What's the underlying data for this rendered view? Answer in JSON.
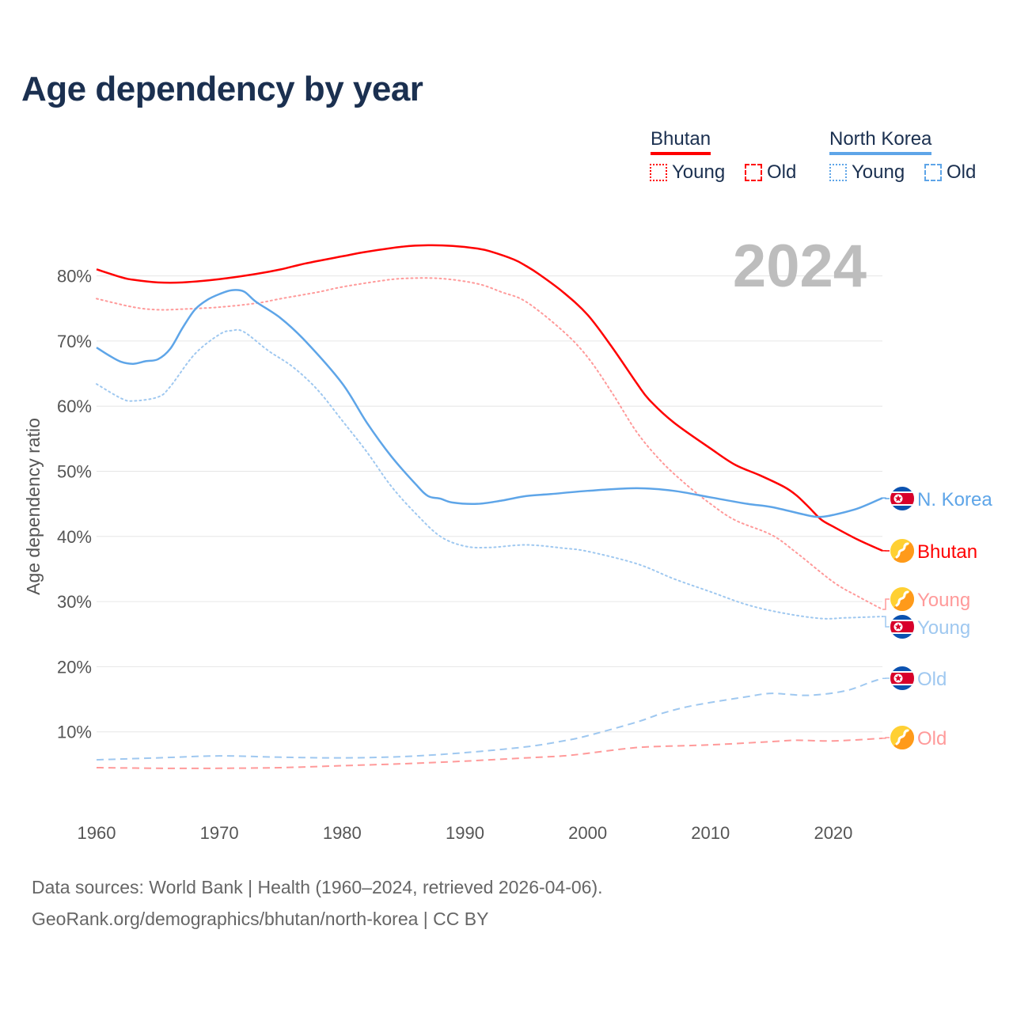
{
  "title": "Age dependency by year",
  "legend": {
    "countries": [
      {
        "name": "Bhutan",
        "color": "#ff0000",
        "items": [
          "Young",
          "Old"
        ]
      },
      {
        "name": "North Korea",
        "color": "#5ea5e8",
        "items": [
          "Young",
          "Old"
        ]
      }
    ]
  },
  "year_watermark": "2024",
  "footer": {
    "line1": "Data sources: World Bank | Health (1960–2024, retrieved 2026-04-06).",
    "line2": "GeoRank.org/demographics/bhutan/north-korea | CC BY"
  },
  "chart_data": {
    "type": "line",
    "title": "Age dependency by year",
    "xlabel": "",
    "ylabel": "Age dependency ratio",
    "xlim": [
      1960,
      2024
    ],
    "ylim": [
      0,
      85
    ],
    "x_ticks": [
      "1960",
      "1970",
      "1980",
      "1990",
      "2000",
      "2010",
      "2020"
    ],
    "y_ticks": [
      "10%",
      "20%",
      "30%",
      "40%",
      "50%",
      "60%",
      "70%",
      "80%"
    ],
    "grid": true,
    "legend_position": "top-right",
    "series": [
      {
        "name": "Bhutan",
        "end_label": "Bhutan",
        "country": "bhutan",
        "style": "solid",
        "color": "#ff0000",
        "points": [
          [
            1960,
            81
          ],
          [
            1962,
            79.8
          ],
          [
            1963,
            79.4
          ],
          [
            1965,
            79
          ],
          [
            1967,
            79
          ],
          [
            1970,
            79.5
          ],
          [
            1973,
            80.3
          ],
          [
            1975,
            81
          ],
          [
            1977,
            81.9
          ],
          [
            1980,
            83
          ],
          [
            1982,
            83.7
          ],
          [
            1985,
            84.5
          ],
          [
            1987,
            84.7
          ],
          [
            1989,
            84.6
          ],
          [
            1991,
            84.2
          ],
          [
            1992,
            83.8
          ],
          [
            1994,
            82.5
          ],
          [
            1995,
            81.5
          ],
          [
            1996,
            80.3
          ],
          [
            1998,
            77.5
          ],
          [
            2000,
            74
          ],
          [
            2002,
            69
          ],
          [
            2004,
            63.5
          ],
          [
            2005,
            61
          ],
          [
            2007,
            57.5
          ],
          [
            2010,
            53.5
          ],
          [
            2012,
            51
          ],
          [
            2014,
            49.4
          ],
          [
            2016,
            47.6
          ],
          [
            2017,
            46.3
          ],
          [
            2018,
            44.5
          ],
          [
            2019,
            42.6
          ],
          [
            2020,
            41.5
          ],
          [
            2022,
            39.5
          ],
          [
            2024,
            37.8
          ]
        ]
      },
      {
        "name": "Bhutan Young",
        "end_label": "Young",
        "country": "bhutan",
        "style": "dotted",
        "color": "#ff9a9a",
        "points": [
          [
            1960,
            76.5
          ],
          [
            1963,
            75.2
          ],
          [
            1965,
            74.8
          ],
          [
            1967,
            74.9
          ],
          [
            1970,
            75.2
          ],
          [
            1973,
            75.8
          ],
          [
            1975,
            76.5
          ],
          [
            1978,
            77.5
          ],
          [
            1980,
            78.3
          ],
          [
            1983,
            79.2
          ],
          [
            1985,
            79.6
          ],
          [
            1988,
            79.6
          ],
          [
            1991,
            78.8
          ],
          [
            1993,
            77.5
          ],
          [
            1995,
            76
          ],
          [
            1998,
            71.5
          ],
          [
            2000,
            67.5
          ],
          [
            2002,
            62
          ],
          [
            2004,
            56
          ],
          [
            2006,
            51.5
          ],
          [
            2008,
            48
          ],
          [
            2010,
            45
          ],
          [
            2012,
            42.5
          ],
          [
            2015,
            40.2
          ],
          [
            2017,
            37.5
          ],
          [
            2020,
            33
          ],
          [
            2022,
            30.8
          ],
          [
            2024,
            28.8
          ]
        ]
      },
      {
        "name": "Bhutan Old",
        "end_label": "Old",
        "country": "bhutan",
        "style": "dashed",
        "color": "#ff9a9a",
        "points": [
          [
            1960,
            4.5
          ],
          [
            1965,
            4.4
          ],
          [
            1970,
            4.4
          ],
          [
            1975,
            4.5
          ],
          [
            1980,
            4.8
          ],
          [
            1985,
            5.1
          ],
          [
            1990,
            5.5
          ],
          [
            1995,
            6
          ],
          [
            1998,
            6.3
          ],
          [
            2000,
            6.7
          ],
          [
            2003,
            7.4
          ],
          [
            2005,
            7.7
          ],
          [
            2010,
            8
          ],
          [
            2015,
            8.5
          ],
          [
            2017,
            8.7
          ],
          [
            2020,
            8.6
          ],
          [
            2024,
            9
          ]
        ]
      },
      {
        "name": "North Korea",
        "end_label": "N. Korea",
        "country": "north-korea",
        "style": "solid",
        "color": "#5ea5e8",
        "points": [
          [
            1960,
            69
          ],
          [
            1961,
            67.8
          ],
          [
            1962,
            66.8
          ],
          [
            1963,
            66.5
          ],
          [
            1964,
            66.9
          ],
          [
            1965,
            67.2
          ],
          [
            1966,
            68.8
          ],
          [
            1967,
            72
          ],
          [
            1968,
            74.8
          ],
          [
            1969,
            76.3
          ],
          [
            1970,
            77.2
          ],
          [
            1971,
            77.8
          ],
          [
            1972,
            77.6
          ],
          [
            1973,
            76
          ],
          [
            1975,
            73.5
          ],
          [
            1977,
            70
          ],
          [
            1980,
            63.5
          ],
          [
            1982,
            57.5
          ],
          [
            1984,
            52.3
          ],
          [
            1986,
            48
          ],
          [
            1987,
            46.2
          ],
          [
            1988,
            45.8
          ],
          [
            1989,
            45.2
          ],
          [
            1991,
            45
          ],
          [
            1993,
            45.5
          ],
          [
            1995,
            46.2
          ],
          [
            1997,
            46.5
          ],
          [
            2000,
            47
          ],
          [
            2004,
            47.4
          ],
          [
            2007,
            47
          ],
          [
            2010,
            46
          ],
          [
            2013,
            45
          ],
          [
            2015,
            44.5
          ],
          [
            2018,
            43.2
          ],
          [
            2019,
            43
          ],
          [
            2020,
            43.3
          ],
          [
            2022,
            44.3
          ],
          [
            2024,
            45.9
          ]
        ]
      },
      {
        "name": "North Korea Young",
        "end_label": "Young",
        "country": "north-korea",
        "style": "dotted",
        "color": "#9fc8f0",
        "points": [
          [
            1960,
            63.4
          ],
          [
            1962,
            61.2
          ],
          [
            1963,
            60.8
          ],
          [
            1965,
            61.4
          ],
          [
            1966,
            63
          ],
          [
            1968,
            68
          ],
          [
            1970,
            71
          ],
          [
            1971,
            71.6
          ],
          [
            1972,
            71.4
          ],
          [
            1974,
            68.5
          ],
          [
            1976,
            66
          ],
          [
            1978,
            62.5
          ],
          [
            1980,
            57.8
          ],
          [
            1982,
            53
          ],
          [
            1984,
            47.7
          ],
          [
            1986,
            43.5
          ],
          [
            1988,
            40
          ],
          [
            1990,
            38.5
          ],
          [
            1992,
            38.3
          ],
          [
            1995,
            38.7
          ],
          [
            1998,
            38.2
          ],
          [
            2000,
            37.7
          ],
          [
            2004,
            35.8
          ],
          [
            2007,
            33.5
          ],
          [
            2010,
            31.5
          ],
          [
            2013,
            29.5
          ],
          [
            2016,
            28.2
          ],
          [
            2019,
            27.4
          ],
          [
            2021,
            27.5
          ],
          [
            2024,
            27.7
          ]
        ]
      },
      {
        "name": "North Korea Old",
        "end_label": "Old",
        "country": "north-korea",
        "style": "dashed",
        "color": "#9fc8f0",
        "points": [
          [
            1960,
            5.7
          ],
          [
            1965,
            6
          ],
          [
            1970,
            6.3
          ],
          [
            1975,
            6.1
          ],
          [
            1980,
            6
          ],
          [
            1985,
            6.2
          ],
          [
            1990,
            6.8
          ],
          [
            1995,
            7.7
          ],
          [
            1998,
            8.6
          ],
          [
            2000,
            9.4
          ],
          [
            2004,
            11.5
          ],
          [
            2006,
            12.8
          ],
          [
            2008,
            13.8
          ],
          [
            2010,
            14.5
          ],
          [
            2013,
            15.4
          ],
          [
            2015,
            15.9
          ],
          [
            2018,
            15.6
          ],
          [
            2021,
            16.3
          ],
          [
            2023,
            17.6
          ],
          [
            2024,
            18.2
          ]
        ]
      }
    ]
  }
}
